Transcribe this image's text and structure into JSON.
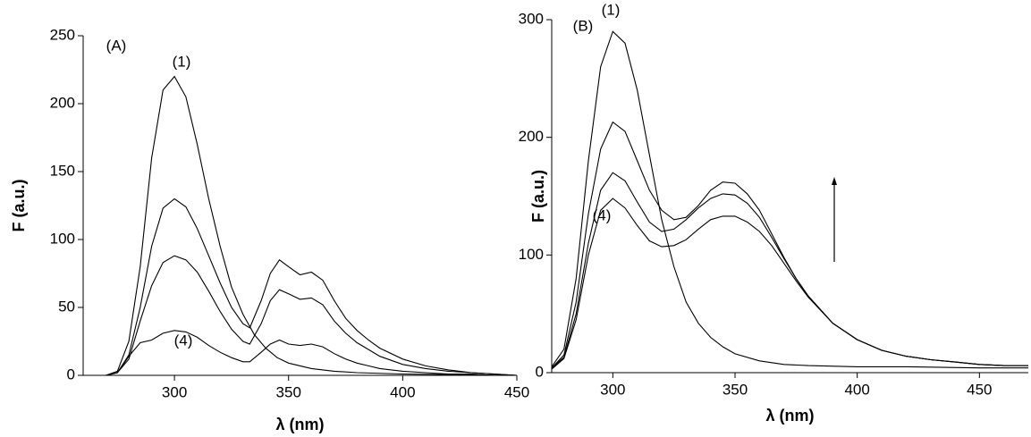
{
  "chart_data": [
    {
      "type": "line",
      "xlabel": "λ (nm)",
      "ylabel": "F (a.u.)",
      "xlim": [
        260,
        450
      ],
      "ylim": [
        0,
        250
      ],
      "xticks": [
        300,
        350,
        400,
        450
      ],
      "yticks": [
        0,
        50,
        100,
        150,
        200,
        250
      ],
      "annotations": [
        "(A)",
        "(1)",
        "(4)"
      ],
      "series": [
        {
          "color": "#000000",
          "x": [
            270,
            275,
            280,
            285,
            290,
            295,
            300,
            305,
            310,
            315,
            320,
            325,
            330,
            335,
            340,
            345,
            350,
            360,
            370,
            380,
            400,
            450
          ],
          "values": [
            0,
            3,
            25,
            80,
            160,
            210,
            220,
            205,
            170,
            130,
            95,
            65,
            45,
            30,
            20,
            13,
            9,
            5,
            3,
            2,
            1,
            0
          ]
        },
        {
          "color": "#000000",
          "x": [
            270,
            275,
            280,
            285,
            290,
            295,
            300,
            305,
            310,
            315,
            320,
            325,
            330,
            333,
            338,
            342,
            346,
            350,
            355,
            360,
            365,
            370,
            375,
            380,
            385,
            390,
            400,
            410,
            420,
            430,
            440,
            450
          ],
          "values": [
            0,
            2,
            15,
            50,
            95,
            123,
            130,
            124,
            108,
            88,
            68,
            50,
            38,
            35,
            55,
            75,
            85,
            80,
            74,
            76,
            70,
            55,
            42,
            33,
            26,
            20,
            12,
            7,
            4,
            2,
            1,
            0
          ]
        },
        {
          "color": "#000000",
          "x": [
            270,
            275,
            280,
            285,
            290,
            295,
            300,
            305,
            310,
            315,
            320,
            325,
            330,
            333,
            338,
            342,
            346,
            350,
            355,
            360,
            365,
            370,
            375,
            380,
            385,
            390,
            400,
            410,
            420,
            430,
            440,
            450
          ],
          "values": [
            0,
            2,
            12,
            40,
            66,
            83,
            88,
            85,
            76,
            62,
            47,
            34,
            25,
            23,
            38,
            55,
            63,
            60,
            56,
            57,
            52,
            40,
            31,
            24,
            19,
            14,
            8,
            5,
            3,
            2,
            1,
            0
          ]
        },
        {
          "color": "#000000",
          "x": [
            270,
            275,
            280,
            285,
            290,
            295,
            300,
            305,
            310,
            315,
            320,
            325,
            330,
            333,
            338,
            342,
            346,
            350,
            355,
            360,
            365,
            370,
            375,
            380,
            385,
            390,
            400,
            410,
            420,
            430,
            440,
            450
          ],
          "values": [
            0,
            2,
            14,
            24,
            26,
            31,
            33,
            32,
            28,
            22,
            17,
            13,
            10,
            10,
            17,
            23,
            26,
            23,
            22,
            23,
            21,
            16,
            12,
            9,
            7,
            5,
            3,
            2,
            1,
            1,
            0,
            0
          ]
        }
      ]
    },
    {
      "type": "line",
      "xlabel": "λ (nm)",
      "ylabel": "F (a.u.)",
      "xlim": [
        275,
        470
      ],
      "ylim": [
        0,
        300
      ],
      "xticks": [
        300,
        350,
        400,
        450
      ],
      "yticks": [
        0,
        100,
        200,
        300
      ],
      "annotations": [
        "(B)",
        "(1)",
        "(4)"
      ],
      "series": [
        {
          "color": "#000000",
          "x": [
            275,
            280,
            285,
            290,
            295,
            300,
            305,
            310,
            315,
            320,
            325,
            330,
            335,
            340,
            345,
            350,
            360,
            370,
            380,
            400,
            420,
            450,
            470
          ],
          "values": [
            5,
            20,
            80,
            180,
            260,
            290,
            280,
            240,
            185,
            130,
            90,
            60,
            42,
            30,
            22,
            16,
            10,
            7,
            6,
            5,
            5,
            4,
            4
          ]
        },
        {
          "color": "#000000",
          "x": [
            275,
            280,
            285,
            290,
            295,
            300,
            305,
            310,
            315,
            320,
            325,
            330,
            335,
            340,
            345,
            350,
            355,
            360,
            365,
            370,
            375,
            380,
            390,
            400,
            410,
            420,
            430,
            440,
            450,
            460,
            470
          ],
          "values": [
            4,
            15,
            60,
            135,
            190,
            213,
            205,
            180,
            155,
            138,
            130,
            132,
            142,
            155,
            162,
            161,
            152,
            138,
            118,
            98,
            80,
            65,
            42,
            28,
            19,
            14,
            11,
            9,
            7,
            6,
            6
          ]
        },
        {
          "color": "#000000",
          "x": [
            275,
            280,
            285,
            290,
            295,
            300,
            305,
            310,
            315,
            320,
            325,
            330,
            335,
            340,
            345,
            350,
            355,
            360,
            365,
            370,
            375,
            380,
            390,
            400,
            410,
            420,
            430,
            440,
            450,
            460,
            470
          ],
          "values": [
            4,
            13,
            50,
            110,
            155,
            170,
            163,
            145,
            128,
            120,
            122,
            130,
            140,
            148,
            152,
            151,
            144,
            132,
            115,
            97,
            80,
            65,
            42,
            28,
            19,
            14,
            11,
            9,
            7,
            6,
            6
          ]
        },
        {
          "color": "#000000",
          "x": [
            275,
            280,
            285,
            290,
            295,
            300,
            305,
            310,
            315,
            320,
            325,
            330,
            335,
            340,
            345,
            350,
            355,
            360,
            365,
            370,
            375,
            380,
            390,
            400,
            410,
            420,
            430,
            440,
            450,
            460,
            470
          ],
          "values": [
            3,
            12,
            45,
            100,
            138,
            148,
            140,
            125,
            112,
            107,
            108,
            113,
            122,
            130,
            133,
            133,
            128,
            120,
            108,
            93,
            78,
            64,
            42,
            28,
            19,
            14,
            11,
            9,
            7,
            6,
            6
          ]
        }
      ]
    }
  ]
}
